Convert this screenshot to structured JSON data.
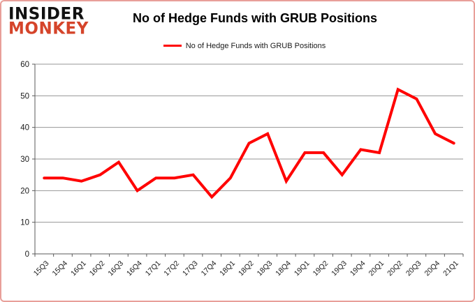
{
  "window": {
    "background": "#ffffff",
    "border_color": "#e89f99"
  },
  "logo": {
    "line1": "INSIDER",
    "line2": "MONKEY",
    "line1_color": "#111111",
    "line2_color": "#d5442a"
  },
  "header": {
    "title": "No of Hedge Funds with GRUB Positions"
  },
  "legend": {
    "label": "No of Hedge Funds with GRUB Positions",
    "line_color": "#ff0000"
  },
  "chart_data": {
    "type": "line",
    "title": "No of Hedge Funds with GRUB Positions",
    "categories": [
      "15Q3",
      "15Q4",
      "16Q1",
      "16Q2",
      "16Q3",
      "16Q4",
      "17Q1",
      "17Q2",
      "17Q3",
      "17Q4",
      "18Q1",
      "18Q2",
      "18Q3",
      "18Q4",
      "19Q1",
      "19Q2",
      "19Q3",
      "19Q4",
      "20Q1",
      "20Q2",
      "20Q3",
      "20Q4",
      "21Q1"
    ],
    "series": [
      {
        "name": "No of Hedge Funds with GRUB Positions",
        "color": "#ff0000",
        "values": [
          24,
          24,
          23,
          25,
          29,
          20,
          24,
          24,
          25,
          18,
          24,
          35,
          38,
          23,
          32,
          32,
          25,
          33,
          32,
          52,
          49,
          38,
          35
        ]
      }
    ],
    "xlabel": "",
    "ylabel": "",
    "ylim": [
      0,
      60
    ],
    "yticks": [
      0,
      10,
      20,
      30,
      40,
      50,
      60
    ],
    "grid": "horizontal",
    "grid_color": "#969696",
    "axis_color": "#595959",
    "tick_label_color": "#1a1a1a",
    "legend_position": "top",
    "line_width": 4,
    "tick_label_rotation": -45
  }
}
